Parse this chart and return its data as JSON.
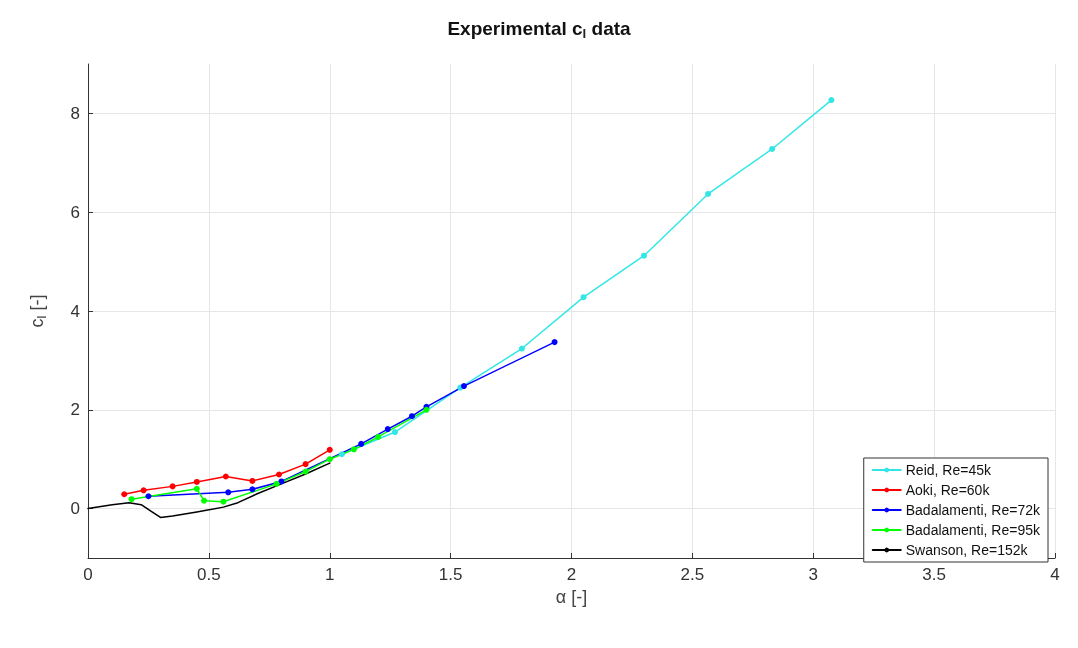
{
  "chart_data": {
    "type": "line",
    "title": "Experimental c$_{l}$ data",
    "xlabel": "α [-]",
    "ylabel": "c$_{l}$ [-]",
    "xlim": [
      0,
      4
    ],
    "xticks": [
      0,
      0.5,
      1,
      1.5,
      2,
      2.5,
      3,
      3.5,
      4
    ],
    "ylim": [
      -1,
      9
    ],
    "yticks": [
      0,
      2,
      4,
      6,
      8
    ],
    "grid": true,
    "legend": "bottom right",
    "marker": "circle",
    "line_style": "solid",
    "series": [
      {
        "name": "Reid, Re=45k",
        "color": "#33e6e6",
        "x": [
          1.05,
          1.27,
          1.54,
          1.795,
          2.05,
          2.3,
          2.565,
          2.83,
          3.075
        ],
        "values": [
          1.1,
          1.55,
          2.45,
          3.24,
          4.28,
          5.12,
          6.37,
          7.28,
          8.27
        ]
      },
      {
        "name": "Aoki, Re=60k",
        "color": "#ff0000",
        "x": [
          0.15,
          0.23,
          0.35,
          0.45,
          0.57,
          0.68,
          0.79,
          0.9,
          1.0
        ],
        "values": [
          0.29,
          0.37,
          0.45,
          0.54,
          0.65,
          0.56,
          0.69,
          0.9,
          1.19
        ]
      },
      {
        "name": "Badalamenti, Re=72k",
        "color": "#0000ff",
        "x": [
          0.25,
          0.58,
          0.68,
          0.8,
          1.13,
          1.24,
          1.34,
          1.4,
          1.555,
          1.93
        ],
        "values": [
          0.25,
          0.33,
          0.39,
          0.55,
          1.31,
          1.61,
          1.87,
          2.06,
          2.48,
          3.37
        ]
      },
      {
        "name": "Badalamenti, Re=95k",
        "color": "#00ff00",
        "x": [
          0.18,
          0.45,
          0.48,
          0.56,
          0.78,
          0.9,
          1.0,
          1.1,
          1.2,
          1.4
        ],
        "values": [
          0.19,
          0.4,
          0.16,
          0.14,
          0.5,
          0.75,
          1.0,
          1.2,
          1.45,
          2.0
        ]
      },
      {
        "name": "Swanson, Re=152k",
        "color": "#000000",
        "marker": "none",
        "x": [
          0,
          0.1,
          0.17,
          0.22,
          0.26,
          0.3,
          0.35,
          0.45,
          0.56,
          0.62,
          0.7,
          0.8,
          0.9,
          1.0
        ],
        "values": [
          0,
          0.08,
          0.12,
          0.08,
          -0.05,
          -0.18,
          -0.15,
          -0.07,
          0.03,
          0.12,
          0.3,
          0.5,
          0.7,
          0.92
        ]
      }
    ]
  }
}
